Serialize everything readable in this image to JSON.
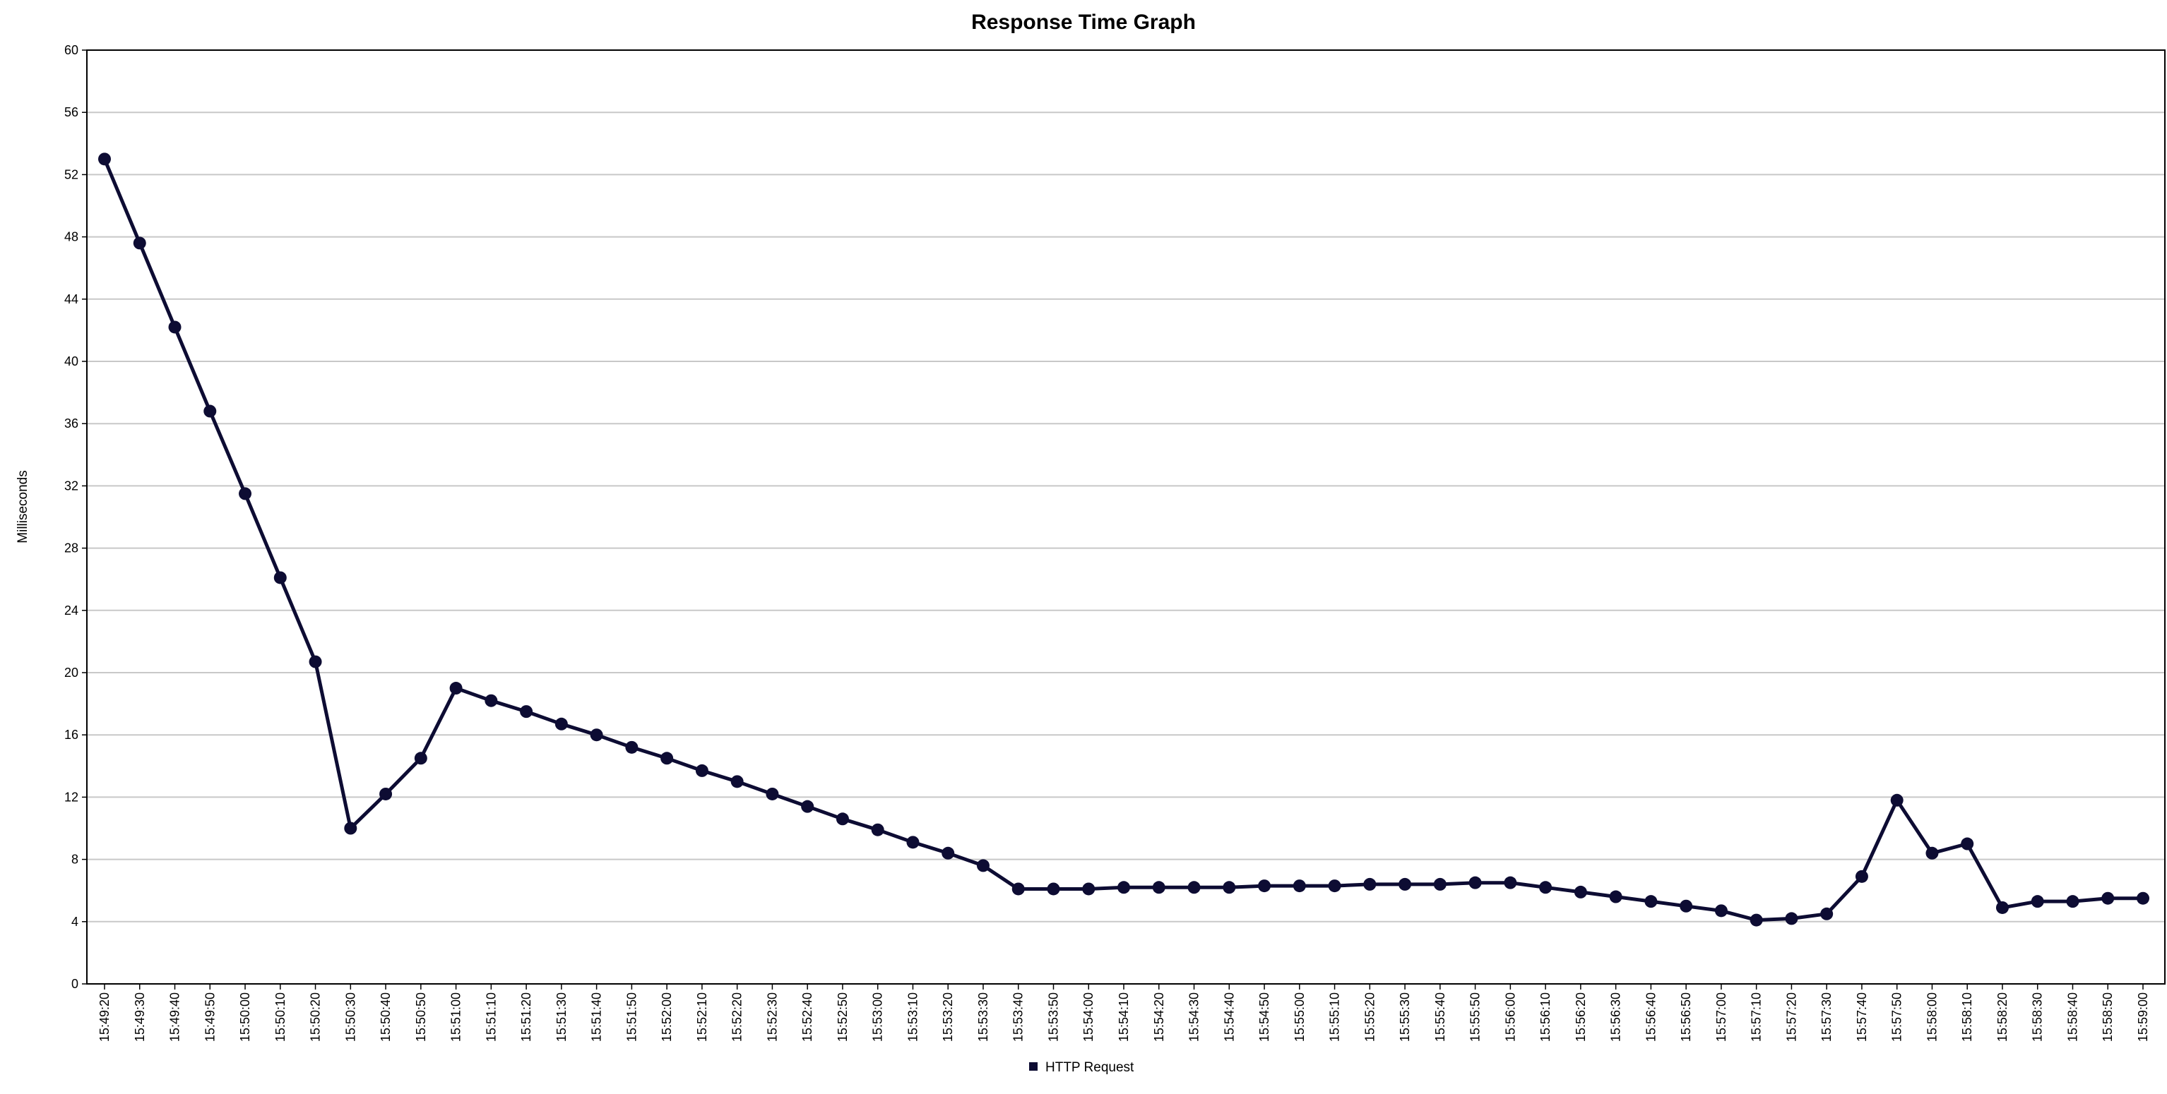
{
  "chart_data": {
    "type": "line",
    "title": "Response Time Graph",
    "xlabel": "",
    "ylabel": "Milliseconds",
    "ylim": [
      0,
      60
    ],
    "yticks": [
      0,
      4,
      8,
      12,
      16,
      20,
      24,
      28,
      32,
      36,
      40,
      44,
      48,
      52,
      56,
      60
    ],
    "grid": true,
    "legend_position": "bottom-center",
    "x": [
      "15:49:20",
      "15:49:30",
      "15:49:40",
      "15:49:50",
      "15:50:00",
      "15:50:10",
      "15:50:20",
      "15:50:30",
      "15:50:40",
      "15:50:50",
      "15:51:00",
      "15:51:10",
      "15:51:20",
      "15:51:30",
      "15:51:40",
      "15:51:50",
      "15:52:00",
      "15:52:10",
      "15:52:20",
      "15:52:30",
      "15:52:40",
      "15:52:50",
      "15:53:00",
      "15:53:10",
      "15:53:20",
      "15:53:30",
      "15:53:40",
      "15:53:50",
      "15:54:00",
      "15:54:10",
      "15:54:20",
      "15:54:30",
      "15:54:40",
      "15:54:50",
      "15:55:00",
      "15:55:10",
      "15:55:20",
      "15:55:30",
      "15:55:40",
      "15:55:50",
      "15:56:00",
      "15:56:10",
      "15:56:20",
      "15:56:30",
      "15:56:40",
      "15:56:50",
      "15:57:00",
      "15:57:10",
      "15:57:20",
      "15:57:30",
      "15:57:40",
      "15:57:50",
      "15:58:00",
      "15:58:10",
      "15:58:20",
      "15:58:30",
      "15:58:40",
      "15:58:50",
      "15:59:00"
    ],
    "series": [
      {
        "name": "HTTP Request",
        "color": "#0d0c33",
        "values": [
          53.0,
          47.6,
          42.2,
          36.8,
          31.5,
          26.1,
          20.7,
          10.0,
          12.2,
          14.5,
          19.0,
          18.2,
          17.5,
          16.7,
          16.0,
          15.2,
          14.5,
          13.7,
          13.0,
          12.2,
          11.4,
          10.6,
          9.9,
          9.1,
          8.4,
          7.6,
          6.1,
          6.1,
          6.1,
          6.2,
          6.2,
          6.2,
          6.2,
          6.3,
          6.3,
          6.3,
          6.4,
          6.4,
          6.4,
          6.5,
          6.5,
          6.2,
          5.9,
          5.6,
          5.3,
          5.0,
          4.7,
          4.1,
          4.2,
          4.5,
          6.9,
          11.8,
          8.4,
          9.0,
          4.9,
          5.3,
          5.3,
          5.5,
          5.5
        ]
      }
    ]
  }
}
